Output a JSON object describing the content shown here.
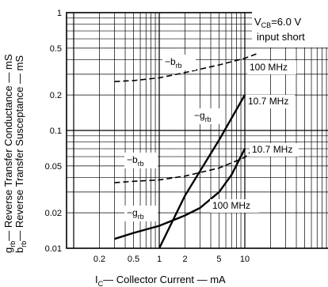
{
  "chart_data": {
    "type": "line",
    "xlabel_main": "I",
    "xlabel_sub": "C",
    "xlabel_rest": "— Collector  Current — mA",
    "ylabel_line1_main": "g",
    "ylabel_line1_sub": "rb",
    "ylabel_line1_rest": "— Reverse  Transfer  Conductance — mS",
    "ylabel_line2_main": "b",
    "ylabel_line2_sub": "rb",
    "ylabel_line2_rest": "— Reverse  Transfer  Susceptance — mS",
    "x_scale": "log",
    "y_scale": "log",
    "xlim": [
      0.1,
      20
    ],
    "ylim": [
      0.01,
      1
    ],
    "grid": true,
    "x_ticks": [
      {
        "value": 0.2,
        "label": "0.2"
      },
      {
        "value": 0.5,
        "label": "0.5"
      },
      {
        "value": 1,
        "label": "1"
      },
      {
        "value": 2,
        "label": "2"
      },
      {
        "value": 5,
        "label": "5"
      },
      {
        "value": 10,
        "label": "10"
      }
    ],
    "y_ticks": [
      {
        "value": 0.01,
        "label": "0.01"
      },
      {
        "value": 0.02,
        "label": "0.02"
      },
      {
        "value": 0.05,
        "label": "0.05"
      },
      {
        "value": 0.1,
        "label": "0.1"
      },
      {
        "value": 0.2,
        "label": "0.2"
      },
      {
        "value": 0.5,
        "label": "0.5"
      },
      {
        "value": 1,
        "label": "1"
      }
    ],
    "condition_line1_main": "V",
    "condition_line1_sub": "CB",
    "condition_line1_rest": "=6.0 V",
    "condition_line2": "input short",
    "series": [
      {
        "name": "100 MHz",
        "quantity": "−b",
        "quantity_sub": "rb",
        "style": "dashed",
        "x": [
          0.3,
          0.5,
          1,
          2,
          5,
          10,
          14
        ],
        "y": [
          0.26,
          0.265,
          0.28,
          0.31,
          0.36,
          0.41,
          0.45
        ]
      },
      {
        "name": "10.7 MHz",
        "quantity": "−g",
        "quantity_sub": "rb",
        "style": "solid",
        "x": [
          1,
          2,
          5,
          10
        ],
        "y": [
          0.01,
          0.028,
          0.083,
          0.2
        ]
      },
      {
        "name": "10.7 MHz",
        "quantity": "−b",
        "quantity_sub": "rb",
        "style": "dashed",
        "x": [
          0.3,
          0.5,
          1,
          2,
          5,
          10,
          14
        ],
        "y": [
          0.036,
          0.037,
          0.038,
          0.041,
          0.048,
          0.059,
          0.075
        ]
      },
      {
        "name": "100 MHz",
        "quantity": "−g",
        "quantity_sub": "rb",
        "style": "solid",
        "x": [
          0.3,
          0.5,
          1,
          2,
          3,
          5,
          7,
          10
        ],
        "y": [
          0.012,
          0.0135,
          0.0155,
          0.019,
          0.022,
          0.03,
          0.042,
          0.07
        ]
      }
    ]
  }
}
